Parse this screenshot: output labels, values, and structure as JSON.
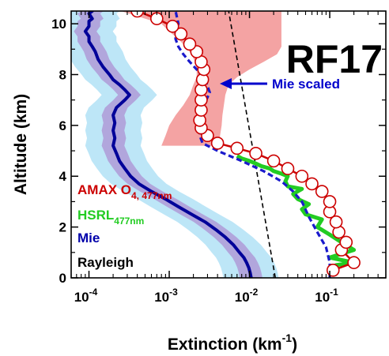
{
  "chart_data": {
    "type": "line",
    "title": "RF17",
    "xlabel": "Extinction (km",
    "xlabel_sup": "-1",
    "xlabel_end": ")",
    "ylabel": "Altitude (km)",
    "xscale": "log",
    "xlim": [
      6e-05,
      0.5
    ],
    "ylim": [
      0,
      10.5
    ],
    "xticks": [
      {
        "value": 0.0001,
        "base": "10",
        "exp": "-4"
      },
      {
        "value": 0.001,
        "base": "10",
        "exp": "-3"
      },
      {
        "value": 0.01,
        "base": "10",
        "exp": "-2"
      },
      {
        "value": 0.1,
        "base": "10",
        "exp": "-1"
      }
    ],
    "yticks": [
      0,
      2,
      4,
      6,
      8,
      10
    ],
    "legend": [
      {
        "label": "AMAX O",
        "sub": "4, 477nm",
        "color": "#cc0000"
      },
      {
        "label": "HSRL",
        "sub": "477nm",
        "color": "#22cc22"
      },
      {
        "label": "Mie",
        "sub": "",
        "color": "#0000aa"
      },
      {
        "label": "Rayleigh",
        "sub": "",
        "color": "#000000"
      }
    ],
    "annotation": {
      "text": "Mie scaled",
      "color": "#0000cc"
    },
    "series": [
      {
        "name": "AMAX O4, 477nm",
        "color": "#cc0000",
        "x": [
          0.11,
          0.2,
          0.14,
          0.16,
          0.13,
          0.12,
          0.1,
          0.1,
          0.08,
          0.06,
          0.045,
          0.03,
          0.02,
          0.012,
          0.007,
          0.004,
          0.003,
          0.0025,
          0.0024,
          0.0025,
          0.0025,
          0.0025,
          0.0026,
          0.0027,
          0.0025,
          0.0022,
          0.0018,
          0.0014,
          0.0011,
          0.0007,
          0.0004
        ],
        "y": [
          0.3,
          0.6,
          1.1,
          1.4,
          1.8,
          2.2,
          2.6,
          3.0,
          3.4,
          3.7,
          4.0,
          4.3,
          4.6,
          4.9,
          5.1,
          5.3,
          5.6,
          5.9,
          6.2,
          6.6,
          7.0,
          7.4,
          7.8,
          8.2,
          8.5,
          8.9,
          9.2,
          9.6,
          9.9,
          10.2,
          10.5
        ]
      },
      {
        "name": "AMAX O4 uncertainty",
        "color": "#f4a3a3",
        "x_low": [
          0.0008,
          0.0009,
          0.001,
          0.0012,
          0.0015,
          0.0018,
          0.002,
          0.0022,
          0.0022,
          0.0021,
          0.0019,
          0.0016,
          0.0013,
          0.001,
          0.0008,
          0.0004,
          0.00025
        ],
        "x_high": [
          0.0042,
          0.0043,
          0.0045,
          0.0046,
          0.0048,
          0.005,
          0.0055,
          0.007,
          0.01,
          0.015,
          0.022,
          0.025,
          0.025,
          0.025,
          0.025,
          0.025,
          0.025
        ],
        "y": [
          5.2,
          5.6,
          6.0,
          6.4,
          6.8,
          7.2,
          7.6,
          7.9,
          8.2,
          8.5,
          8.8,
          9.1,
          9.4,
          9.7,
          10.0,
          10.3,
          10.5
        ]
      },
      {
        "name": "HSRL477nm",
        "color": "#22cc22",
        "x": [
          0.1,
          0.11,
          0.12,
          0.2,
          0.1,
          0.2,
          0.14,
          0.1,
          0.07,
          0.08,
          0.05,
          0.045,
          0.055,
          0.04,
          0.035,
          0.045,
          0.03,
          0.028,
          0.03,
          0.025,
          0.02,
          0.018,
          0.014,
          0.012,
          0.01,
          0.008,
          0.007
        ],
        "y": [
          0.1,
          0.3,
          0.5,
          0.6,
          0.8,
          1.1,
          1.4,
          1.7,
          2.0,
          2.3,
          2.5,
          2.7,
          2.9,
          3.1,
          3.3,
          3.5,
          3.6,
          3.8,
          4.0,
          4.1,
          4.2,
          4.3,
          4.4,
          4.5,
          4.6,
          4.7,
          4.8
        ]
      },
      {
        "name": "Mie",
        "color": "#000099",
        "x": [
          0.0105,
          0.0102,
          0.0098,
          0.0092,
          0.0085,
          0.0075,
          0.0063,
          0.005,
          0.0038,
          0.0028,
          0.0019,
          0.0013,
          0.0009,
          0.0006,
          0.00042,
          0.00033,
          0.00028,
          0.00024,
          0.00022,
          0.0002,
          0.00021,
          0.0002,
          0.00021,
          0.0002,
          0.00022,
          0.00028,
          0.00032,
          0.00028,
          0.00024,
          0.0002,
          0.00018,
          0.00015,
          0.00013,
          0.00012,
          0.00011,
          0.0001,
          0.0001,
          9e-05,
          0.0001,
          0.0001,
          0.00011,
          0.0001,
          0.00011
        ],
        "y": [
          0.0,
          0.2,
          0.4,
          0.6,
          0.8,
          1.0,
          1.3,
          1.6,
          1.9,
          2.2,
          2.5,
          2.8,
          3.1,
          3.4,
          3.7,
          4.0,
          4.3,
          4.6,
          4.9,
          5.2,
          5.5,
          5.8,
          6.1,
          6.4,
          6.7,
          7.0,
          7.2,
          7.4,
          7.6,
          7.8,
          8.0,
          8.3,
          8.6,
          8.9,
          9.1,
          9.3,
          9.5,
          9.7,
          9.9,
          10.1,
          10.2,
          10.4,
          10.5
        ]
      },
      {
        "name": "Mie scaled",
        "color": "#1a1acc",
        "x": [
          0.1,
          0.1,
          0.09,
          0.07,
          0.055,
          0.045,
          0.035,
          0.025,
          0.015,
          0.008,
          0.004,
          0.0026,
          0.0024,
          0.0025,
          0.0025,
          0.0027,
          0.0032,
          0.0028,
          0.0022,
          0.0018,
          0.0015,
          0.0013,
          0.0012,
          0.0012,
          0.0013,
          0.0012
        ],
        "y": [
          0.0,
          0.6,
          1.2,
          1.8,
          2.4,
          3.0,
          3.4,
          3.8,
          4.2,
          4.6,
          5.0,
          5.3,
          5.6,
          6.0,
          6.4,
          6.8,
          7.3,
          7.8,
          8.2,
          8.5,
          8.8,
          9.1,
          9.4,
          9.7,
          10.0,
          10.5
        ]
      },
      {
        "name": "Rayleigh",
        "color": "#000000",
        "x": [
          0.021,
          0.0055
        ],
        "y": [
          0.0,
          10.5
        ]
      }
    ]
  }
}
